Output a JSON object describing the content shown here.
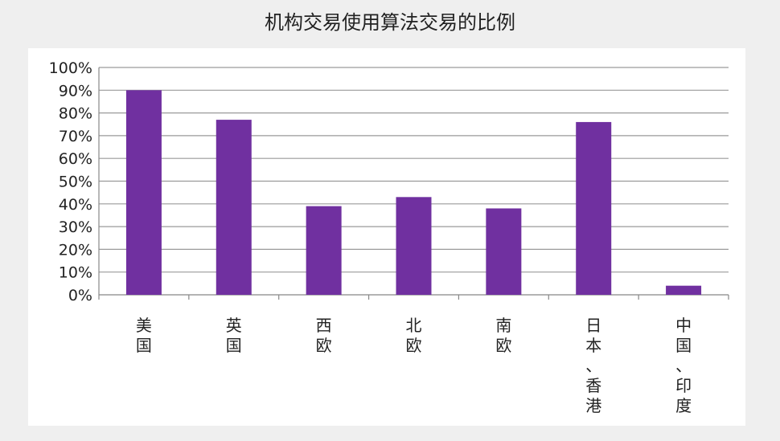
{
  "chart_data": {
    "type": "bar",
    "title": "机构交易使用算法交易的比例",
    "xlabel": "",
    "ylabel": "",
    "categories": [
      "美国",
      "英国",
      "西欧",
      "北欧",
      "南欧",
      "日本、香港",
      "中国、印度"
    ],
    "values": [
      90,
      77,
      39,
      43,
      38,
      76,
      4
    ],
    "ylim": [
      0,
      100
    ],
    "yticks": [
      "0%",
      "10%",
      "20%",
      "30%",
      "40%",
      "50%",
      "60%",
      "70%",
      "80%",
      "90%",
      "100%"
    ],
    "grid": true,
    "legend": "none",
    "bar_color": "#7030a0"
  }
}
